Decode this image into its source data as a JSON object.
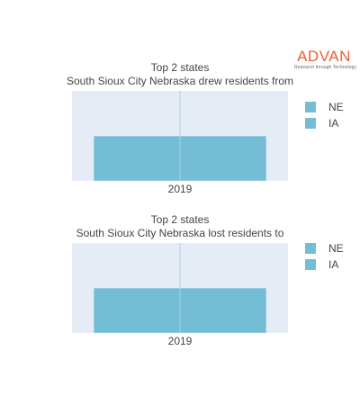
{
  "logo": {
    "name": "ADVAN",
    "tagline": "Research through Technology",
    "color": "#e8612c"
  },
  "colors": {
    "bar": "#74bdd6",
    "plot_background": "#e5ecf6",
    "divider": "#aad4e3"
  },
  "chart_data": [
    {
      "type": "bar",
      "title": "Top 2 states",
      "subtitle": "South Sioux City Nebraska drew residents from",
      "categories": [
        "2019"
      ],
      "barmode": "stack",
      "series": [
        {
          "name": "NE",
          "values": [
            0.5
          ]
        },
        {
          "name": "IA",
          "values": [
            0.5
          ]
        }
      ],
      "ylim": [
        0,
        1
      ],
      "legend_position": "right",
      "grid": false
    },
    {
      "type": "bar",
      "title": "Top 2 states",
      "subtitle": "South Sioux City Nebraska lost residents to",
      "categories": [
        "2019"
      ],
      "barmode": "stack",
      "series": [
        {
          "name": "NE",
          "values": [
            0.5
          ]
        },
        {
          "name": "IA",
          "values": [
            0.5
          ]
        }
      ],
      "ylim": [
        0,
        1
      ],
      "legend_position": "right",
      "grid": false
    }
  ]
}
